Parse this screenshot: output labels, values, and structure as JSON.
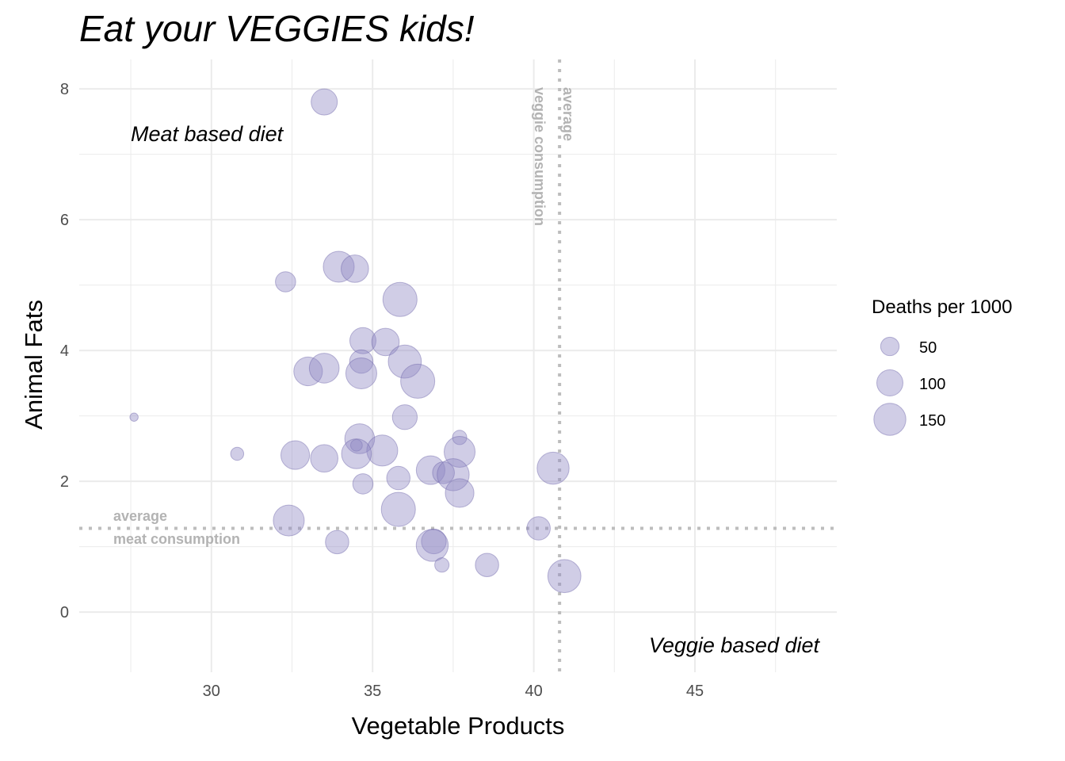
{
  "chart_data": {
    "type": "scatter",
    "title": "Eat your VEGGIES kids!",
    "xlabel": "Vegetable Products",
    "ylabel": "Animal Fats",
    "xlim": [
      25.9,
      49.4
    ],
    "ylim": [
      -0.92,
      8.45
    ],
    "x_ticks": [
      30,
      35,
      40,
      45
    ],
    "y_ticks": [
      0,
      2,
      4,
      6,
      8
    ],
    "grid": true,
    "colors": {
      "point_fill": "#8f88c4",
      "point_stroke": "#6c64a8",
      "reference_line": "#bdbdbd",
      "grid": "#ebebeb"
    },
    "size_variable": "Deaths per 1000",
    "points": [
      {
        "x": 33.5,
        "y": 7.8,
        "size": 100
      },
      {
        "x": 32.3,
        "y": 5.05,
        "size": 60
      },
      {
        "x": 33.95,
        "y": 5.28,
        "size": 140
      },
      {
        "x": 34.45,
        "y": 5.25,
        "size": 110
      },
      {
        "x": 35.85,
        "y": 4.78,
        "size": 170
      },
      {
        "x": 34.7,
        "y": 4.15,
        "size": 100
      },
      {
        "x": 35.4,
        "y": 4.13,
        "size": 110
      },
      {
        "x": 36.0,
        "y": 3.83,
        "size": 160
      },
      {
        "x": 34.65,
        "y": 3.83,
        "size": 80
      },
      {
        "x": 33.0,
        "y": 3.68,
        "size": 120
      },
      {
        "x": 33.5,
        "y": 3.73,
        "size": 130
      },
      {
        "x": 34.65,
        "y": 3.65,
        "size": 140
      },
      {
        "x": 36.4,
        "y": 3.53,
        "size": 170
      },
      {
        "x": 27.6,
        "y": 2.98,
        "size": 10
      },
      {
        "x": 36.0,
        "y": 2.98,
        "size": 90
      },
      {
        "x": 37.7,
        "y": 2.67,
        "size": 30
      },
      {
        "x": 34.6,
        "y": 2.65,
        "size": 130
      },
      {
        "x": 34.5,
        "y": 2.55,
        "size": 20
      },
      {
        "x": 35.3,
        "y": 2.47,
        "size": 140
      },
      {
        "x": 37.7,
        "y": 2.45,
        "size": 140
      },
      {
        "x": 30.8,
        "y": 2.42,
        "size": 25
      },
      {
        "x": 32.6,
        "y": 2.4,
        "size": 120
      },
      {
        "x": 33.5,
        "y": 2.35,
        "size": 110
      },
      {
        "x": 34.5,
        "y": 2.42,
        "size": 130
      },
      {
        "x": 40.6,
        "y": 2.2,
        "size": 150
      },
      {
        "x": 36.8,
        "y": 2.17,
        "size": 120
      },
      {
        "x": 37.2,
        "y": 2.13,
        "size": 70
      },
      {
        "x": 37.5,
        "y": 2.1,
        "size": 150
      },
      {
        "x": 35.8,
        "y": 2.05,
        "size": 80
      },
      {
        "x": 34.7,
        "y": 1.96,
        "size": 60
      },
      {
        "x": 37.7,
        "y": 1.82,
        "size": 120
      },
      {
        "x": 35.8,
        "y": 1.57,
        "size": 170
      },
      {
        "x": 32.4,
        "y": 1.4,
        "size": 140
      },
      {
        "x": 40.15,
        "y": 1.28,
        "size": 80
      },
      {
        "x": 36.9,
        "y": 1.08,
        "size": 90
      },
      {
        "x": 33.9,
        "y": 1.07,
        "size": 80
      },
      {
        "x": 36.85,
        "y": 1.02,
        "size": 150
      },
      {
        "x": 37.15,
        "y": 0.72,
        "size": 30
      },
      {
        "x": 38.55,
        "y": 0.72,
        "size": 80
      },
      {
        "x": 40.95,
        "y": 0.55,
        "size": 160
      }
    ],
    "reference_lines": {
      "vertical": {
        "x": 40.8,
        "label_line1": "average",
        "label_line2": "veggie consumption"
      },
      "horizontal": {
        "y": 1.28,
        "label_line1": "average",
        "label_line2": "meat consumption"
      }
    },
    "annotations": {
      "top_left": "Meat based diet",
      "bottom_right": "Veggie based diet"
    },
    "legend": {
      "title": "Deaths per 1000",
      "position": "right",
      "entries": [
        {
          "label": "50",
          "size": 50
        },
        {
          "label": "100",
          "size": 100
        },
        {
          "label": "150",
          "size": 150
        }
      ]
    }
  }
}
